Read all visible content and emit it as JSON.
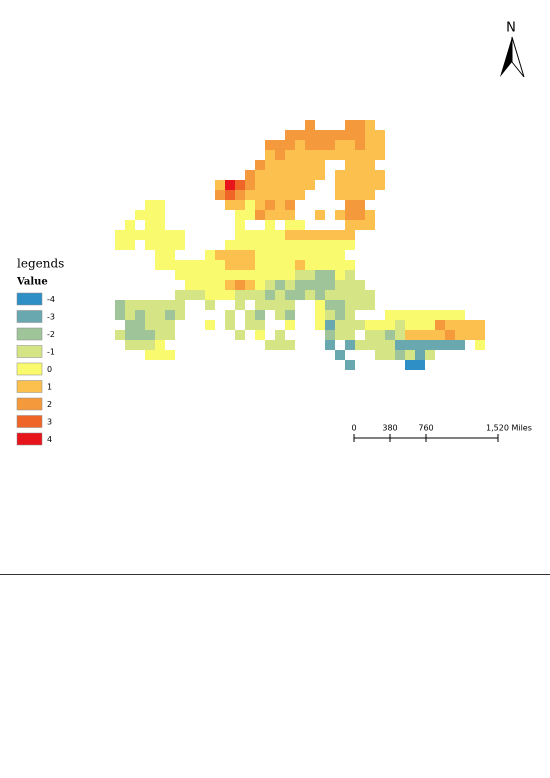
{
  "north": "N",
  "legend": {
    "title": "legends",
    "subtitle": "Value",
    "items": [
      {
        "value": -4,
        "color": "#2e8fc7"
      },
      {
        "value": -3,
        "color": "#6aa8b0"
      },
      {
        "value": -2,
        "color": "#9fc49a"
      },
      {
        "value": -1,
        "color": "#d5e585"
      },
      {
        "value": 0,
        "color": "#fafa6e"
      },
      {
        "value": 1,
        "color": "#fbc04e"
      },
      {
        "value": 2,
        "color": "#f59a3c"
      },
      {
        "value": 3,
        "color": "#ef6527"
      },
      {
        "value": 4,
        "color": "#e8141c"
      }
    ]
  },
  "scale_bar": {
    "xlim": [
      0,
      1520
    ],
    "ticks": [
      0,
      380,
      760,
      {
        "value": 1520,
        "label": "1,520 Miles"
      }
    ]
  },
  "cells": [
    [
      null,
      null,
      null,
      null,
      null,
      null,
      null,
      null,
      null,
      null,
      null,
      null,
      null,
      null,
      null,
      null,
      null,
      null,
      null,
      2,
      null,
      null,
      null,
      2,
      2,
      1,
      null,
      null,
      null,
      null,
      null,
      null,
      null,
      null,
      null,
      null,
      null
    ],
    [
      null,
      null,
      null,
      null,
      null,
      null,
      null,
      null,
      null,
      null,
      null,
      null,
      null,
      null,
      null,
      null,
      null,
      2,
      2,
      2,
      2,
      2,
      2,
      2,
      2,
      1,
      1,
      null,
      null,
      null,
      null,
      null,
      null,
      null,
      null,
      null,
      null
    ],
    [
      null,
      null,
      null,
      null,
      null,
      null,
      null,
      null,
      null,
      null,
      null,
      null,
      null,
      null,
      null,
      2,
      2,
      2,
      1,
      2,
      2,
      2,
      1,
      1,
      2,
      1,
      1,
      null,
      null,
      null,
      null,
      null,
      null,
      null,
      null,
      null,
      null
    ],
    [
      null,
      null,
      null,
      null,
      null,
      null,
      null,
      null,
      null,
      null,
      null,
      null,
      null,
      null,
      null,
      1,
      2,
      1,
      1,
      1,
      1,
      1,
      1,
      1,
      1,
      1,
      1,
      null,
      null,
      null,
      null,
      null,
      null,
      null,
      null,
      null,
      null
    ],
    [
      null,
      null,
      null,
      null,
      null,
      null,
      null,
      null,
      null,
      null,
      null,
      null,
      null,
      null,
      2,
      1,
      1,
      1,
      1,
      1,
      1,
      null,
      null,
      1,
      1,
      1,
      null,
      null,
      null,
      null,
      null,
      null,
      null,
      null,
      null,
      null,
      null
    ],
    [
      null,
      null,
      null,
      null,
      null,
      null,
      null,
      null,
      null,
      null,
      null,
      null,
      null,
      2,
      1,
      1,
      1,
      1,
      1,
      1,
      1,
      null,
      1,
      1,
      1,
      1,
      1,
      null,
      null,
      null,
      null,
      null,
      null,
      null,
      null,
      null,
      null
    ],
    [
      null,
      null,
      null,
      null,
      null,
      null,
      null,
      null,
      null,
      null,
      1,
      4,
      3,
      2,
      1,
      1,
      1,
      1,
      1,
      1,
      null,
      null,
      1,
      1,
      1,
      1,
      1,
      null,
      null,
      null,
      null,
      null,
      null,
      null,
      null,
      null,
      null
    ],
    [
      null,
      null,
      null,
      null,
      null,
      null,
      null,
      null,
      null,
      null,
      2,
      3,
      2,
      1,
      1,
      1,
      1,
      1,
      1,
      null,
      null,
      null,
      1,
      1,
      1,
      1,
      null,
      null,
      null,
      null,
      null,
      null,
      null,
      null,
      null,
      null,
      null
    ],
    [
      null,
      null,
      null,
      0,
      0,
      null,
      null,
      null,
      null,
      null,
      null,
      1,
      1,
      0,
      1,
      2,
      1,
      2,
      null,
      null,
      null,
      null,
      null,
      2,
      2,
      null,
      null,
      null,
      null,
      null,
      null,
      null,
      null,
      null,
      null,
      null,
      null
    ],
    [
      null,
      null,
      0,
      0,
      0,
      null,
      null,
      null,
      null,
      null,
      null,
      null,
      0,
      0,
      2,
      1,
      1,
      1,
      null,
      null,
      1,
      null,
      1,
      2,
      2,
      1,
      null,
      null,
      null,
      null,
      null,
      null,
      null,
      null,
      null,
      null,
      null
    ],
    [
      null,
      0,
      null,
      0,
      0,
      null,
      null,
      null,
      null,
      null,
      null,
      null,
      0,
      null,
      null,
      0,
      null,
      0,
      0,
      null,
      null,
      null,
      null,
      1,
      1,
      1,
      null,
      null,
      null,
      null,
      null,
      null,
      null,
      null,
      null,
      null,
      null
    ],
    [
      0,
      0,
      0,
      0,
      0,
      0,
      0,
      null,
      null,
      null,
      null,
      null,
      0,
      0,
      0,
      0,
      0,
      1,
      1,
      1,
      1,
      1,
      1,
      1,
      null,
      null,
      null,
      null,
      null,
      null,
      null,
      null,
      null,
      null,
      null,
      null,
      null
    ],
    [
      0,
      0,
      null,
      0,
      0,
      0,
      0,
      null,
      null,
      null,
      null,
      0,
      0,
      0,
      0,
      0,
      0,
      0,
      0,
      0,
      0,
      0,
      0,
      0,
      null,
      null,
      null,
      null,
      null,
      null,
      null,
      null,
      null,
      null,
      null,
      null,
      null
    ],
    [
      null,
      null,
      null,
      null,
      0,
      0,
      null,
      null,
      null,
      0,
      1,
      1,
      1,
      1,
      0,
      0,
      0,
      0,
      0,
      0,
      0,
      0,
      0,
      null,
      null,
      null,
      null,
      null,
      null,
      null,
      null,
      null,
      null,
      null,
      null,
      null,
      null
    ],
    [
      null,
      null,
      null,
      null,
      0,
      0,
      0,
      0,
      0,
      0,
      0,
      1,
      1,
      1,
      0,
      0,
      0,
      0,
      1,
      0,
      0,
      0,
      0,
      0,
      null,
      null,
      null,
      null,
      null,
      null,
      null,
      null,
      null,
      null,
      null,
      null,
      null
    ],
    [
      null,
      null,
      null,
      null,
      null,
      null,
      0,
      0,
      0,
      0,
      0,
      0,
      0,
      0,
      0,
      0,
      0,
      0,
      -1,
      -1,
      -2,
      -2,
      0,
      -1,
      null,
      null,
      null,
      null,
      null,
      null,
      null,
      null,
      null,
      null,
      null,
      null,
      null
    ],
    [
      null,
      null,
      null,
      null,
      null,
      null,
      null,
      0,
      0,
      0,
      0,
      1,
      2,
      1,
      0,
      -1,
      -2,
      -1,
      -2,
      -2,
      -2,
      -2,
      -1,
      -1,
      -1,
      null,
      null,
      null,
      null,
      null,
      null,
      null,
      null,
      null,
      null,
      null,
      null
    ],
    [
      null,
      null,
      null,
      null,
      null,
      null,
      -1,
      -1,
      -1,
      0,
      0,
      0,
      -1,
      -1,
      -1,
      -2,
      -1,
      -2,
      -2,
      -1,
      -2,
      -1,
      -1,
      -1,
      -1,
      -1,
      null,
      null,
      null,
      null,
      null,
      null,
      null,
      null,
      null,
      null,
      null
    ],
    [
      -2,
      -1,
      -1,
      -1,
      -1,
      -1,
      -1,
      null,
      null,
      -1,
      null,
      null,
      -1,
      null,
      -1,
      -1,
      -1,
      -1,
      null,
      null,
      0,
      -2,
      -2,
      -1,
      -1,
      -1,
      null,
      null,
      null,
      null,
      null,
      null,
      null,
      null,
      null,
      null,
      null
    ],
    [
      -2,
      -1,
      -2,
      -1,
      -1,
      -2,
      -1,
      null,
      null,
      null,
      null,
      -1,
      null,
      -1,
      -2,
      null,
      -1,
      -2,
      null,
      null,
      0,
      -1,
      -2,
      -1,
      null,
      null,
      null,
      0,
      0,
      0,
      0,
      0,
      0,
      0,
      0,
      null,
      null
    ],
    [
      null,
      -2,
      -2,
      -1,
      -1,
      -1,
      null,
      null,
      null,
      0,
      null,
      -1,
      null,
      -1,
      -1,
      null,
      null,
      0,
      null,
      null,
      0,
      -3,
      -1,
      -1,
      -1,
      0,
      0,
      0,
      -1,
      0,
      0,
      0,
      2,
      1,
      1,
      1,
      1
    ],
    [
      -1,
      -2,
      -2,
      -2,
      -1,
      -1,
      null,
      null,
      null,
      null,
      null,
      null,
      -1,
      null,
      0,
      null,
      -1,
      null,
      null,
      null,
      null,
      -2,
      -1,
      -1,
      null,
      -1,
      -1,
      -2,
      -1,
      1,
      1,
      1,
      1,
      2,
      1,
      1,
      1
    ],
    [
      null,
      -1,
      -1,
      -1,
      0,
      null,
      null,
      null,
      null,
      null,
      null,
      null,
      null,
      null,
      null,
      -1,
      -1,
      -1,
      null,
      null,
      null,
      -3,
      null,
      -3,
      -1,
      -1,
      -1,
      -1,
      -3,
      -3,
      -3,
      -3,
      -3,
      -3,
      -3,
      null,
      0
    ],
    [
      null,
      null,
      null,
      0,
      0,
      0,
      null,
      null,
      null,
      null,
      null,
      null,
      null,
      null,
      null,
      null,
      null,
      null,
      null,
      null,
      null,
      null,
      -3,
      null,
      null,
      null,
      -1,
      -1,
      -2,
      -1,
      -3,
      -1,
      null,
      null,
      null,
      null,
      null
    ],
    [
      null,
      null,
      null,
      null,
      null,
      null,
      null,
      null,
      null,
      null,
      null,
      null,
      null,
      null,
      null,
      null,
      null,
      null,
      null,
      null,
      null,
      null,
      null,
      -3,
      null,
      null,
      null,
      null,
      null,
      -4,
      -4,
      null,
      null,
      null,
      null,
      null,
      null
    ]
  ]
}
